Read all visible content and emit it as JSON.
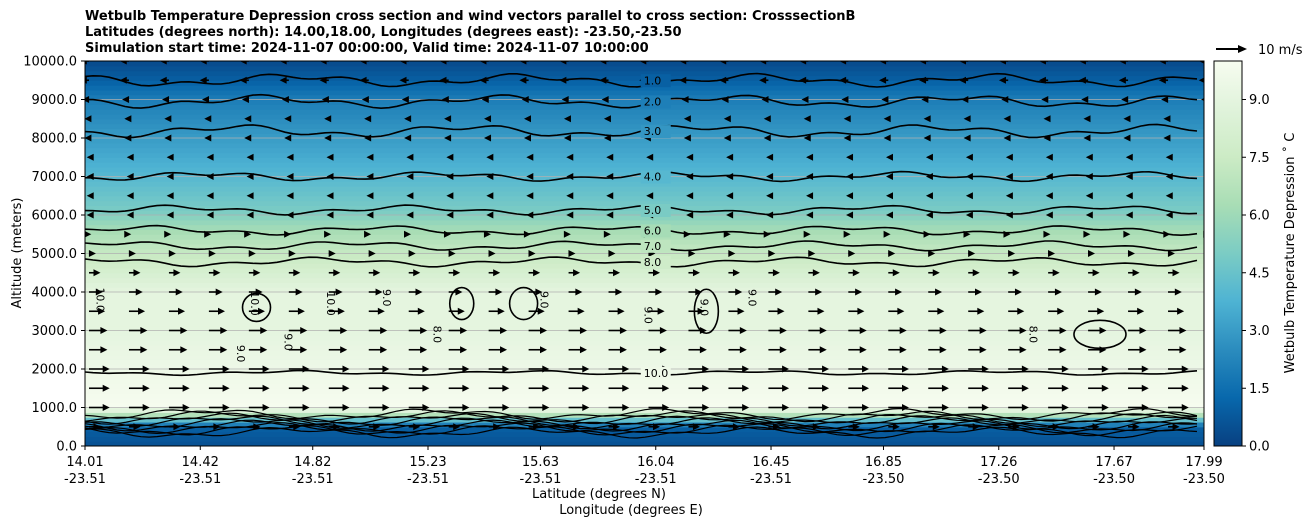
{
  "chart_data": {
    "type": "heatmap",
    "title": [
      "Wetbulb Temperature Depression cross section and wind vectors parallel to cross section: CrosssectionB",
      "Latitudes (degrees north): 14.00,18.00, Longitudes (degrees east): -23.50,-23.50",
      "Simulation start time: 2024-11-07 00:00:00, Valid time: 2024-11-07 10:00:00"
    ],
    "ylabel": "Altitude (meters)",
    "xlabel_lat": "Latitude (degrees N)",
    "xlabel_lon": "Longitude (degrees E)",
    "ylim": [
      0,
      10000
    ],
    "yticks": [
      "0.0",
      "1000.0",
      "2000.0",
      "3000.0",
      "4000.0",
      "5000.0",
      "6000.0",
      "7000.0",
      "8000.0",
      "9000.0",
      "10000.0"
    ],
    "xticks": [
      {
        "lat": "14.01",
        "lon": "-23.51"
      },
      {
        "lat": "14.42",
        "lon": "-23.51"
      },
      {
        "lat": "14.82",
        "lon": "-23.51"
      },
      {
        "lat": "15.23",
        "lon": "-23.51"
      },
      {
        "lat": "15.63",
        "lon": "-23.51"
      },
      {
        "lat": "16.04",
        "lon": "-23.51"
      },
      {
        "lat": "16.45",
        "lon": "-23.51"
      },
      {
        "lat": "16.85",
        "lon": "-23.50"
      },
      {
        "lat": "17.26",
        "lon": "-23.50"
      },
      {
        "lat": "17.67",
        "lon": "-23.50"
      },
      {
        "lat": "17.99",
        "lon": "-23.50"
      }
    ],
    "colorbar": {
      "label": "Wetbulb Temperature Depression ˚ C",
      "range": [
        0,
        10
      ],
      "ticks": [
        "0.0",
        "1.5",
        "3.0",
        "4.5",
        "6.0",
        "7.5",
        "9.0"
      ],
      "colormap": [
        "#084081",
        "#0868ac",
        "#2b8cbe",
        "#4eb3d3",
        "#7bccc4",
        "#a8ddb5",
        "#ccebc5",
        "#e0f3db",
        "#f7fcf0"
      ]
    },
    "wind_key": "10 m/s",
    "profile": [
      {
        "alt": 0,
        "value": 0.5
      },
      {
        "alt": 500,
        "value": 1.0
      },
      {
        "alt": 1000,
        "value": 10.0
      },
      {
        "alt": 2000,
        "value": 9.5
      },
      {
        "alt": 3000,
        "value": 9.0
      },
      {
        "alt": 4000,
        "value": 9.0
      },
      {
        "alt": 4600,
        "value": 8.0
      },
      {
        "alt": 5200,
        "value": 7.0
      },
      {
        "alt": 5700,
        "value": 6.0
      },
      {
        "alt": 6100,
        "value": 5.0
      },
      {
        "alt": 7000,
        "value": 4.0
      },
      {
        "alt": 8000,
        "value": 3.0
      },
      {
        "alt": 9000,
        "value": 2.0
      },
      {
        "alt": 9500,
        "value": 1.0
      },
      {
        "alt": 10000,
        "value": 0.3
      }
    ],
    "contours": [
      {
        "level": "1.0",
        "alt": 9500,
        "label_x": 16.04
      },
      {
        "level": "2.0",
        "alt": 8950,
        "label_x": 16.04
      },
      {
        "level": "3.0",
        "alt": 8180,
        "label_x": 16.04
      },
      {
        "level": "4.0",
        "alt": 7000,
        "label_x": 16.04
      },
      {
        "level": "5.0",
        "alt": 6130,
        "label_x": 16.04
      },
      {
        "level": "6.0",
        "alt": 5600,
        "label_x": 16.04
      },
      {
        "level": "7.0",
        "alt": 5200,
        "label_x": 16.04
      },
      {
        "level": "8.0",
        "alt": 4780,
        "label_x": 16.04
      },
      {
        "level": "10.0",
        "alt": 1900,
        "label_x": 16.04
      }
    ],
    "inner_labels": [
      {
        "text": "10.0",
        "lat": 14.05,
        "alt": 3800
      },
      {
        "text": "10.0",
        "lat": 14.6,
        "alt": 3700
      },
      {
        "text": "10.0",
        "lat": 14.87,
        "alt": 3700
      },
      {
        "text": "9.0",
        "lat": 15.07,
        "alt": 3850
      },
      {
        "text": "9.0",
        "lat": 15.63,
        "alt": 3800
      },
      {
        "text": "9.0",
        "lat": 16.2,
        "alt": 3600
      },
      {
        "text": "9.0",
        "lat": 16.37,
        "alt": 3850
      },
      {
        "text": "9.0",
        "lat": 14.55,
        "alt": 2400
      },
      {
        "text": "9.0",
        "lat": 14.72,
        "alt": 2700
      },
      {
        "text": "8.0",
        "lat": 15.25,
        "alt": 2900
      },
      {
        "text": "8.0",
        "lat": 17.37,
        "alt": 2900
      },
      {
        "text": "9.0",
        "lat": 16.0,
        "alt": 3400
      }
    ],
    "wind": {
      "rows_alt": [
        500,
        1000,
        1500,
        2000,
        2500,
        3000,
        3500,
        4000,
        4500,
        5000,
        5500,
        6000,
        6500,
        7000,
        7500,
        8000,
        8500,
        9000,
        9500,
        10000
      ],
      "u_ms": [
        5,
        9,
        9,
        9,
        8,
        8,
        7,
        6,
        5,
        3,
        1,
        -1,
        -1,
        -1,
        -1,
        -2,
        -2,
        -3,
        -4,
        -4
      ]
    }
  }
}
